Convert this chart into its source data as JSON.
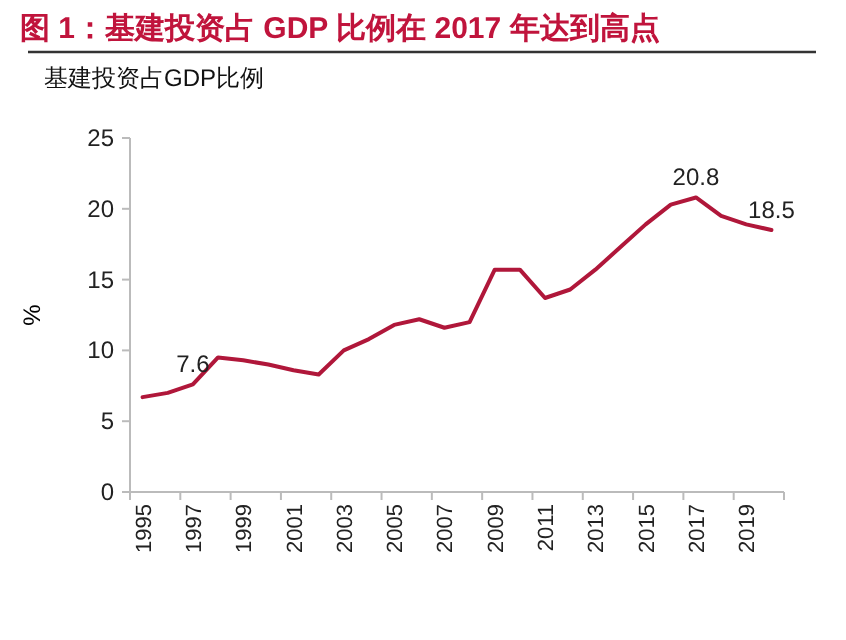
{
  "chart_data": {
    "type": "line",
    "title": "图 1：基建投资占 GDP 比例在 2017 年达到高点",
    "subtitle": "基建投资占GDP比例",
    "ylabel": "%",
    "categories": [
      "1995",
      null,
      "1997",
      null,
      "1999",
      null,
      "2001",
      null,
      "2003",
      null,
      "2005",
      null,
      "2007",
      null,
      "2009",
      null,
      "2011",
      null,
      "2013",
      null,
      "2015",
      null,
      "2017",
      null,
      "2019",
      null
    ],
    "series": [
      {
        "color": "#b0173a",
        "values": [
          6.7,
          7.0,
          7.6,
          9.5,
          9.3,
          9.0,
          8.6,
          8.3,
          10.0,
          10.8,
          11.8,
          12.2,
          11.6,
          12.0,
          15.7,
          15.7,
          13.7,
          14.3,
          15.7,
          17.3,
          18.9,
          20.3,
          20.8,
          19.5,
          18.9,
          18.5
        ],
        "value_labels": [
          null,
          null,
          "7.6",
          null,
          null,
          null,
          null,
          null,
          null,
          null,
          null,
          null,
          null,
          null,
          null,
          null,
          null,
          null,
          null,
          null,
          null,
          null,
          "20.8",
          null,
          null,
          "18.5"
        ]
      }
    ],
    "ylim": [
      0,
      25
    ],
    "yticks": [
      0,
      5,
      10,
      15,
      20,
      25
    ],
    "grid": false
  }
}
